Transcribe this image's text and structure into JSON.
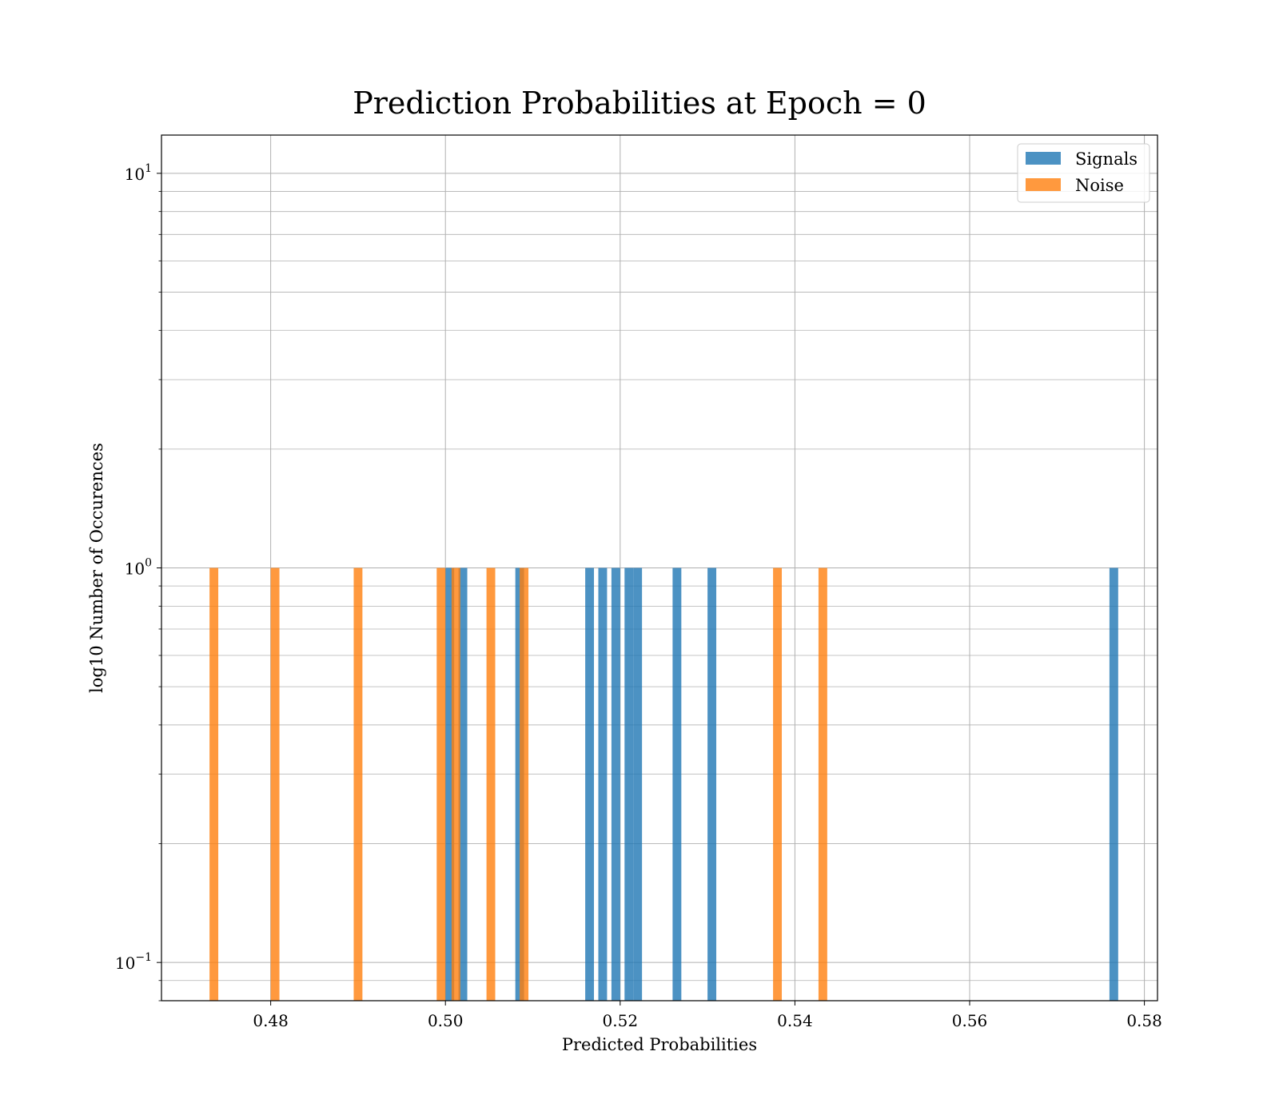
{
  "chart_data": {
    "type": "bar",
    "title": "Prediction Probabilities at Epoch = 0",
    "xlabel": "Predicted Probabilities",
    "ylabel": "log10 Number of Occurences",
    "xlim": [
      0.4675,
      0.5815
    ],
    "ylim": [
      0.08,
      12.5
    ],
    "yscale": "log",
    "grid": true,
    "legend_position": "top-right",
    "x_ticks": [
      0.48,
      0.5,
      0.52,
      0.54,
      0.56,
      0.58
    ],
    "x_tick_labels": [
      "0.48",
      "0.50",
      "0.52",
      "0.54",
      "0.56",
      "0.58"
    ],
    "y_ticks": [
      {
        "value": 0.1,
        "base": "10",
        "exp": "−1"
      },
      {
        "value": 1,
        "base": "10",
        "exp": "0"
      },
      {
        "value": 10,
        "base": "10",
        "exp": "1"
      }
    ],
    "bin_width": 0.001,
    "series": [
      {
        "name": "Signals",
        "color": "#1f77b4",
        "bins": [
          {
            "x": 0.5005,
            "count": 1
          },
          {
            "x": 0.502,
            "count": 1
          },
          {
            "x": 0.5085,
            "count": 1
          },
          {
            "x": 0.5165,
            "count": 1
          },
          {
            "x": 0.518,
            "count": 1
          },
          {
            "x": 0.5195,
            "count": 1
          },
          {
            "x": 0.521,
            "count": 1
          },
          {
            "x": 0.522,
            "count": 1
          },
          {
            "x": 0.5265,
            "count": 1
          },
          {
            "x": 0.5305,
            "count": 1
          },
          {
            "x": 0.5765,
            "count": 1
          }
        ]
      },
      {
        "name": "Noise",
        "color": "#ff7f0e",
        "bins": [
          {
            "x": 0.4735,
            "count": 1
          },
          {
            "x": 0.4805,
            "count": 1
          },
          {
            "x": 0.49,
            "count": 1
          },
          {
            "x": 0.4995,
            "count": 1
          },
          {
            "x": 0.5012,
            "count": 1
          },
          {
            "x": 0.5052,
            "count": 1
          },
          {
            "x": 0.509,
            "count": 1
          },
          {
            "x": 0.538,
            "count": 1
          },
          {
            "x": 0.5432,
            "count": 1
          }
        ]
      }
    ]
  }
}
